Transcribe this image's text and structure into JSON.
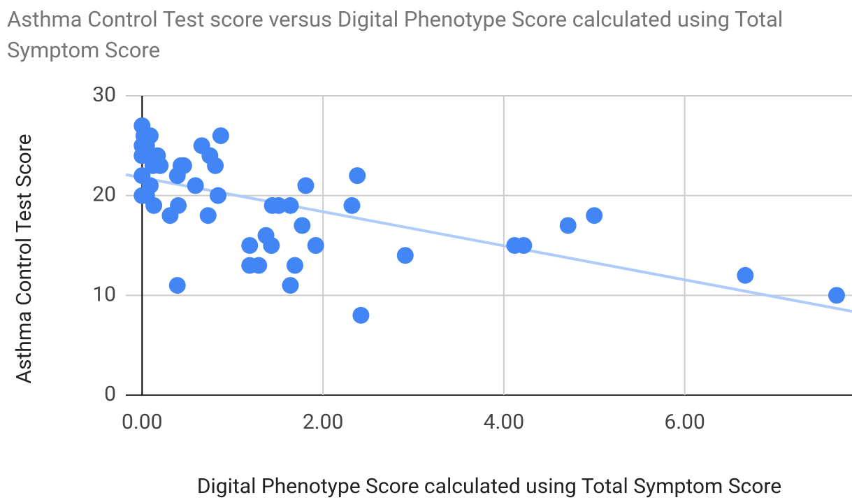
{
  "chart_data": {
    "type": "scatter",
    "title": "Asthma Control Test score versus Digital Phenotype Score calculated using Total Symptom Score",
    "x_label": "Digital Phenotype Score calculated using Total Symptom Score",
    "y_label": "Asthma Control Test Score",
    "xlim": [
      -0.18,
      7.85
    ],
    "ylim": [
      0,
      30
    ],
    "xticks": [
      {
        "value": 0,
        "label": "0.00"
      },
      {
        "value": 2,
        "label": "2.00"
      },
      {
        "value": 4,
        "label": "4.00"
      },
      {
        "value": 6,
        "label": "6.00"
      }
    ],
    "yticks": [
      0,
      10,
      20,
      30
    ],
    "grid": true,
    "series": [
      {
        "color": "#4285f4",
        "x": [
          0,
          0.02,
          0.09,
          0,
          0.05,
          0,
          0.05,
          0.17,
          0.2,
          0.12,
          0,
          0,
          0.05,
          0.09,
          0.13,
          0.31,
          0.4,
          0.39,
          0.43,
          0.46,
          0.39,
          0.59,
          0.66,
          0.75,
          0.81,
          0.73,
          0.84,
          0.87,
          1.19,
          1.19,
          1.29,
          1.37,
          1.43,
          1.44,
          1.51,
          1.64,
          1.64,
          1.69,
          1.77,
          1.81,
          1.92,
          2.32,
          2.38,
          2.42,
          2.91,
          4.12,
          4.22,
          4.71,
          5.0,
          6.67,
          7.68
        ],
        "values": [
          27,
          26,
          26,
          25,
          25,
          24,
          24,
          24,
          23,
          23,
          22,
          20,
          20,
          21,
          19,
          18,
          19,
          22,
          23,
          23,
          11,
          21,
          25,
          24,
          23,
          18,
          20,
          26,
          15,
          13,
          13,
          16,
          15,
          19,
          19,
          19,
          11,
          13,
          17,
          21,
          15,
          19,
          22,
          8,
          14,
          15,
          15,
          17,
          18,
          12,
          10
        ]
      }
    ],
    "trendline": {
      "color": "#aecbfa",
      "x": [
        -0.18,
        7.85
      ],
      "values": [
        22.1,
        8.4
      ]
    }
  }
}
